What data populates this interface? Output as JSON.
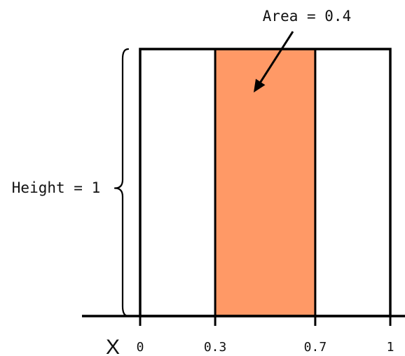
{
  "annotations": {
    "area_label": "Area = 0.4",
    "height_label": "Height = 1",
    "axis_variable": "X"
  },
  "diagram": {
    "type": "uniform-density-rectangle",
    "x_range": [
      0,
      1
    ],
    "height": 1,
    "shaded_interval": [
      0.3,
      0.7
    ],
    "area": 0.4,
    "ticks": [
      {
        "value": 0,
        "label": "0"
      },
      {
        "value": 0.3,
        "label": "0.3"
      },
      {
        "value": 0.7,
        "label": "0.7"
      },
      {
        "value": 1,
        "label": "1"
      }
    ]
  },
  "colors": {
    "shaded_fill": "#FF9966",
    "stroke": "#000000",
    "background": "#ffffff"
  }
}
